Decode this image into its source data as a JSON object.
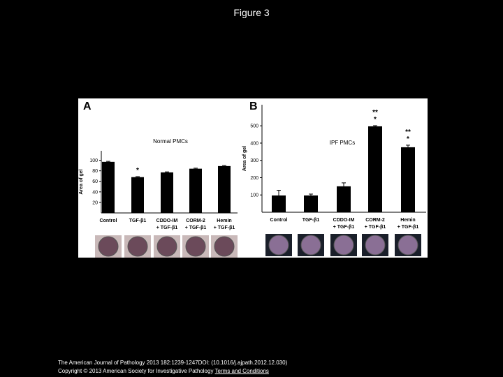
{
  "title": "Figure 3",
  "chart_data": [
    {
      "type": "bar",
      "panel": "A",
      "title": "Normal PMCs",
      "y_label": "Area of gel",
      "categories": [
        "Control",
        "TGF-β1",
        "CDDO-IM\n+ TGF-β1",
        "CORM-2\n+ TGF-β1",
        "Hemin\n+ TGF-β1"
      ],
      "values": [
        97,
        68,
        77,
        84,
        89
      ],
      "errors": [
        1,
        1,
        1,
        1,
        1
      ],
      "color": "#000000",
      "ylim": [
        0,
        118
      ],
      "yticks": [
        20,
        40,
        60,
        80,
        100
      ],
      "annotations": [
        {
          "category": "TGF-β1",
          "text": "*"
        }
      ]
    },
    {
      "type": "bar",
      "panel": "B",
      "title": "IPF PMCs",
      "y_label": "Area of gel",
      "categories": [
        "Control",
        "TGF-β1",
        "CDDO-IM\n+ TGF-β1",
        "CORM-2\n+ TGF-β1",
        "Hemin\n+ TGF-β1"
      ],
      "values": [
        97,
        97,
        150,
        497,
        376
      ],
      "errors": [
        30,
        8,
        20,
        4,
        12
      ],
      "color": "#000000",
      "ylim": [
        0,
        622
      ],
      "yticks": [
        100,
        200,
        300,
        400,
        500
      ],
      "annotations": [
        {
          "category": "CORM-2\n+ TGF-β1",
          "text": "**"
        },
        {
          "category": "CORM-2\n+ TGF-β1",
          "text": "*"
        },
        {
          "category": "Hemin\n+ TGF-β1",
          "text": "**"
        },
        {
          "category": "Hemin\n+ TGF-β1",
          "text": "*"
        }
      ]
    }
  ],
  "footer": {
    "citation": "The American Journal of Pathology 2013 182:1239-1247DOI: (10.1016/j.ajpath.2012.12.030)",
    "copyright": "Copyright © 2013 American Society for Investigative Pathology",
    "link": "Terms and Conditions"
  }
}
